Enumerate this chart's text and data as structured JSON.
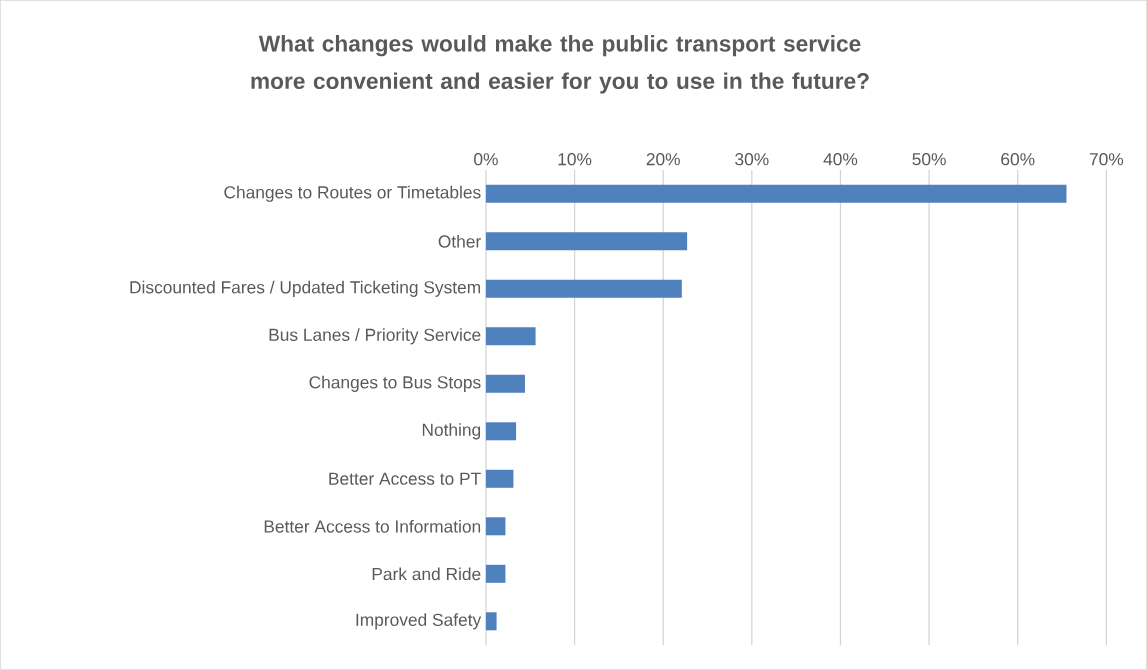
{
  "chart_data": {
    "type": "bar",
    "orientation": "horizontal",
    "title": "What changes would make the public transport service more convenient and easier for you to use in the future?",
    "categories": [
      "Changes to Routes or Timetables",
      "Other",
      "Discounted Fares / Updated Ticketing System",
      "Bus Lanes / Priority Service",
      "Changes to Bus Stops",
      "Nothing",
      "Better Access to PT",
      "Better Access to Information",
      "Park and Ride",
      "Improved Safety"
    ],
    "values": [
      65.5,
      22.7,
      22.1,
      5.6,
      4.4,
      3.4,
      3.1,
      2.2,
      2.2,
      1.2
    ],
    "color": "#4f81bd",
    "xlim": [
      0,
      70
    ],
    "xticks": [
      {
        "value": 0,
        "label": "0%"
      },
      {
        "value": 10,
        "label": "10%"
      },
      {
        "value": 20,
        "label": "20%"
      },
      {
        "value": 30,
        "label": "30%"
      },
      {
        "value": 40,
        "label": "40%"
      },
      {
        "value": 50,
        "label": "50%"
      },
      {
        "value": 60,
        "label": "60%"
      },
      {
        "value": 70,
        "label": "70%"
      }
    ],
    "grid": "x"
  }
}
